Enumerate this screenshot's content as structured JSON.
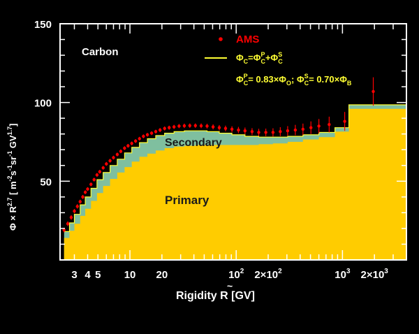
{
  "colors": {
    "background": "#000000",
    "plot_background": "#000000",
    "primary_fill": "#ffcc00",
    "secondary_fill": "#7fbf9f",
    "ams_points": "#ff0000",
    "sum_line": "#ffff33",
    "text": "#ffffff"
  },
  "chart_data": {
    "type": "area",
    "x_scale": "log",
    "xlim": [
      2.2,
      4000
    ],
    "ylim": [
      0,
      150
    ],
    "x_ticks": [
      {
        "value": 3,
        "label": "3"
      },
      {
        "value": 4,
        "label": "4"
      },
      {
        "value": 5,
        "label": "5"
      },
      {
        "value": 10,
        "label": "10"
      },
      {
        "value": 20,
        "label": "20"
      },
      {
        "value": 100,
        "label": "10",
        "sup": "2"
      },
      {
        "value": 200,
        "label": "2×10",
        "sup": "2"
      },
      {
        "value": 1000,
        "label": "10",
        "sup": "3"
      },
      {
        "value": 2000,
        "label": "2×10",
        "sup": "3"
      }
    ],
    "y_ticks": [
      {
        "value": 50,
        "label": "50"
      },
      {
        "value": 100,
        "label": "100"
      },
      {
        "value": 150,
        "label": "150"
      }
    ],
    "xlabel": {
      "text": "Rigidity ",
      "accent_symbol": "R",
      "unit": " [GV]"
    },
    "ylabel": {
      "pre": "Φ × ",
      "sym": "R",
      "exp1": "2.7",
      "mid": " [ m",
      "exp2": "-2",
      "mid2": "s",
      "exp3": "-1",
      "mid3": "sr",
      "exp4": "-1",
      "mid4": " GV",
      "exp5": "1.7",
      "end": "]"
    },
    "annotations": {
      "species": "Carbon",
      "secondary_label": "Secondary",
      "primary_label": "Primary"
    },
    "legend": {
      "placement": "top-right",
      "ams_label": "AMS",
      "sum_formula": {
        "a": "Φ",
        "a_sub": "C",
        "eq": "=",
        "b": "Φ",
        "b_sub": "C",
        "b_sup": "P",
        "plus": "+",
        "c": "Φ",
        "c_sub": "C",
        "c_sup": "S"
      },
      "ratio_formula": {
        "p": "Φ",
        "p_sub": "C",
        "p_sup": "P",
        "p_eq": "= 0.83×Φ",
        "p_sub2": "O",
        "sep": "; ",
        "s": "Φ",
        "s_sub": "C",
        "s_sup": "S",
        "s_eq": "= 0.70×Φ",
        "s_sub2": "B"
      }
    },
    "series": [
      {
        "name": "AMS",
        "kind": "points",
        "x": [
          2.4,
          2.6,
          2.8,
          3.0,
          3.2,
          3.4,
          3.6,
          3.8,
          4.0,
          4.3,
          4.6,
          4.9,
          5.2,
          5.6,
          6.0,
          6.5,
          7.0,
          7.6,
          8.2,
          8.9,
          9.6,
          10.4,
          11.3,
          12.3,
          13.4,
          14.6,
          16.0,
          17.5,
          19.2,
          21.2,
          23.4,
          26.0,
          29.0,
          32.5,
          36.6,
          41.3,
          46.8,
          53.2,
          60.6,
          69.3,
          79.4,
          91.2,
          105,
          121,
          141,
          163,
          190,
          222,
          260,
          305,
          360,
          425,
          505,
          600,
          750,
          1050,
          1950
        ],
        "y": [
          19,
          23,
          27,
          31,
          34,
          37,
          40,
          43,
          45,
          48,
          51,
          54,
          56,
          58.5,
          61,
          63,
          65,
          67,
          69,
          71,
          72.5,
          74,
          75.5,
          77,
          78.5,
          79.5,
          80.5,
          81.5,
          82.5,
          83.5,
          84,
          84.5,
          85,
          85.2,
          85.3,
          85.3,
          85.2,
          85,
          84.5,
          84,
          83.5,
          83,
          82.5,
          82,
          81.5,
          81,
          81,
          81,
          81.5,
          82,
          82.5,
          83,
          84,
          85,
          86,
          88,
          107
        ],
        "yerr": [
          1.5,
          1.5,
          1.5,
          1.4,
          1.4,
          1.3,
          1.3,
          1.2,
          1.2,
          1.2,
          1.2,
          1.2,
          1.2,
          1.2,
          1.2,
          1.2,
          1.2,
          1.2,
          1.2,
          1.2,
          1.2,
          1.2,
          1.2,
          1.2,
          1.2,
          1.2,
          1.2,
          1.2,
          1.3,
          1.3,
          1.3,
          1.3,
          1.3,
          1.4,
          1.4,
          1.4,
          1.5,
          1.5,
          1.6,
          1.7,
          1.8,
          1.9,
          2.0,
          2.1,
          2.2,
          2.3,
          2.4,
          2.6,
          2.8,
          3.0,
          3.3,
          3.6,
          4.0,
          4.5,
          5.0,
          6.0,
          9.0
        ]
      },
      {
        "name": "Φ_C",
        "kind": "line",
        "x": [
          2.4,
          2.7,
          3.0,
          3.4,
          3.8,
          4.3,
          4.9,
          5.6,
          6.5,
          7.6,
          8.9,
          10.4,
          12.3,
          14.6,
          17.5,
          21.2,
          26.0,
          32.5,
          41.3,
          53.2,
          69.3,
          91.2,
          121,
          163,
          222,
          305,
          425,
          600,
          850,
          1150,
          3800
        ],
        "y": [
          18,
          23.5,
          29,
          35,
          40,
          45.5,
          51,
          55.5,
          60,
          64,
          68,
          71.5,
          74.5,
          77,
          79,
          80.5,
          81.5,
          82,
          82,
          81.5,
          80.5,
          79.5,
          78.5,
          78,
          78,
          78.5,
          79.5,
          81,
          84,
          98.5,
          98.5
        ]
      },
      {
        "name": "Primary",
        "kind": "area",
        "x": [
          2.4,
          2.7,
          3.0,
          3.4,
          3.8,
          4.3,
          4.9,
          5.6,
          6.5,
          7.6,
          8.9,
          10.4,
          12.3,
          14.6,
          17.5,
          21.2,
          26.0,
          32.5,
          41.3,
          53.2,
          69.3,
          91.2,
          121,
          163,
          222,
          305,
          425,
          600,
          850,
          1150,
          3800
        ],
        "y": [
          14,
          18.5,
          23,
          28,
          32.5,
          37.5,
          42.5,
          47,
          51.5,
          55.5,
          59,
          62.5,
          65.5,
          67.5,
          69.5,
          71,
          72,
          72.5,
          73,
          73,
          73,
          73,
          73,
          73.5,
          74,
          75,
          76.5,
          78,
          81.5,
          96,
          96
        ]
      }
    ]
  }
}
